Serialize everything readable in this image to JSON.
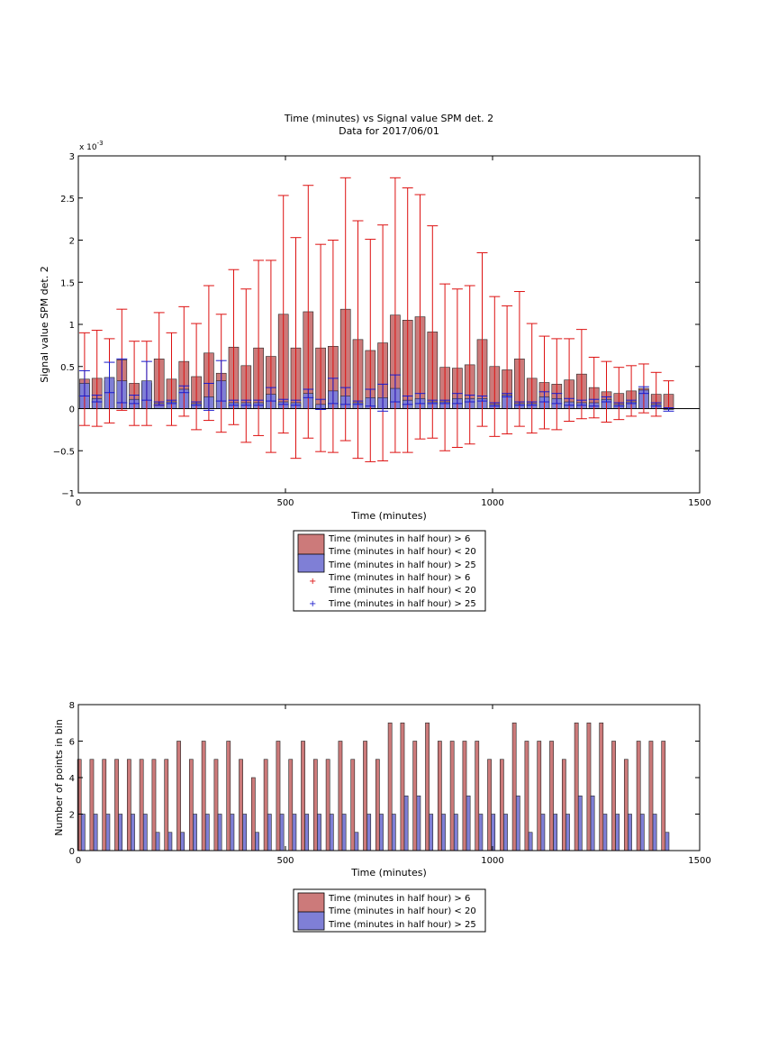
{
  "chart_data": [
    {
      "type": "bar",
      "title": "Time (minutes) vs Signal value SPM det. 2",
      "subtitle": "Data for 2017/06/01",
      "xlabel": "Time (minutes)",
      "ylabel": "Signal value SPM det. 2",
      "y_exponent_label": "x 10",
      "y_exponent_power": "-3",
      "xlim": [
        0,
        1500
      ],
      "ylim": [
        -1,
        3
      ],
      "x_ticks": [
        "0",
        "500",
        "1000",
        "1500"
      ],
      "y_ticks": [
        "−1",
        "−0.5",
        "0",
        "0.5",
        "1",
        "1.5",
        "2",
        "2.5",
        "3"
      ],
      "grid": false,
      "legend_position": "below",
      "legend": [
        "Time (minutes in half hour) > 6",
        "Time (minutes in half hour) < 20",
        "Time (minutes in half hour) > 25",
        "Time (minutes in half hour) > 6",
        "Time (minutes in half hour) < 20",
        "Time (minutes in half hour) > 25"
      ],
      "colors": {
        "series1_fill": "#cc7a7a",
        "series2_fill": "#7f7fd6",
        "series1_error": "#dd1111",
        "series2_error": "#1a1acc"
      },
      "x": [
        15,
        45,
        75,
        105,
        135,
        165,
        195,
        225,
        255,
        285,
        315,
        345,
        375,
        405,
        435,
        465,
        495,
        525,
        555,
        585,
        615,
        645,
        675,
        705,
        735,
        765,
        795,
        825,
        855,
        885,
        915,
        945,
        975,
        1005,
        1035,
        1065,
        1095,
        1125,
        1155,
        1185,
        1215,
        1245,
        1275,
        1305,
        1335,
        1365,
        1395,
        1425
      ],
      "series": [
        {
          "name": "Time (minutes in half hour) > 6 Time (minutes in half hour) < 20",
          "values": [
            0.35,
            0.36,
            0.33,
            0.58,
            0.3,
            0.3,
            0.59,
            0.35,
            0.56,
            0.38,
            0.66,
            0.42,
            0.73,
            0.51,
            0.72,
            0.62,
            1.12,
            0.72,
            1.15,
            0.72,
            0.74,
            1.18,
            0.82,
            0.69,
            0.78,
            1.11,
            1.05,
            1.09,
            0.91,
            0.49,
            0.48,
            0.52,
            0.82,
            0.5,
            0.46,
            0.59,
            0.36,
            0.31,
            0.29,
            0.34,
            0.41,
            0.25,
            0.2,
            0.18,
            0.21,
            0.24,
            0.17,
            0.17
          ],
          "error": [
            0.55,
            0.57,
            0.5,
            0.6,
            0.5,
            0.5,
            0.55,
            0.55,
            0.65,
            0.63,
            0.8,
            0.7,
            0.92,
            0.91,
            1.04,
            1.14,
            1.41,
            1.31,
            1.5,
            1.23,
            1.26,
            1.56,
            1.41,
            1.32,
            1.4,
            1.63,
            1.57,
            1.45,
            1.26,
            0.99,
            0.94,
            0.94,
            1.03,
            0.83,
            0.76,
            0.8,
            0.65,
            0.55,
            0.54,
            0.49,
            0.53,
            0.36,
            0.36,
            0.31,
            0.3,
            0.29,
            0.26,
            0.16
          ]
        },
        {
          "name": "Time (minutes in half hour) > 25",
          "values": [
            0.3,
            0.12,
            0.37,
            0.33,
            0.11,
            0.33,
            0.06,
            0.08,
            0.23,
            0.06,
            0.14,
            0.33,
            0.07,
            0.07,
            0.07,
            0.17,
            0.08,
            0.07,
            0.18,
            0.05,
            0.21,
            0.15,
            0.07,
            0.13,
            0.13,
            0.24,
            0.1,
            0.12,
            0.08,
            0.08,
            0.12,
            0.12,
            0.12,
            0.05,
            0.16,
            0.06,
            0.06,
            0.14,
            0.12,
            0.08,
            0.07,
            0.07,
            0.11,
            0.05,
            0.08,
            0.22,
            0.05,
            -0.01
          ],
          "error": [
            0.15,
            0.04,
            0.18,
            0.26,
            0.05,
            0.23,
            0.02,
            0.02,
            0.04,
            0.02,
            0.16,
            0.24,
            0.03,
            0.03,
            0.03,
            0.08,
            0.03,
            0.03,
            0.05,
            0.06,
            0.15,
            0.1,
            0.02,
            0.1,
            0.16,
            0.16,
            0.05,
            0.06,
            0.02,
            0.02,
            0.06,
            0.04,
            0.03,
            0.02,
            0.02,
            0.02,
            0.02,
            0.06,
            0.06,
            0.04,
            0.03,
            0.04,
            0.03,
            0.02,
            0.02,
            0.04,
            0.02,
            0.02
          ]
        }
      ]
    },
    {
      "type": "bar",
      "xlabel": "Time (minutes)",
      "ylabel": "Number of points in bin",
      "xlim": [
        0,
        1500
      ],
      "ylim": [
        0,
        8
      ],
      "x_ticks": [
        "0",
        "500",
        "1000",
        "1500"
      ],
      "y_ticks": [
        "0",
        "2",
        "4",
        "6",
        "8"
      ],
      "grid": false,
      "legend_position": "below",
      "legend": [
        "Time (minutes in half hour) > 6",
        "Time (minutes in half hour) < 20",
        "Time (minutes in half hour) > 25"
      ],
      "colors": {
        "series1_fill": "#cc7a7a",
        "series2_fill": "#7f7fd6"
      },
      "x": [
        7,
        37,
        67,
        97,
        127,
        157,
        187,
        217,
        247,
        277,
        307,
        337,
        367,
        397,
        427,
        457,
        487,
        517,
        547,
        577,
        607,
        637,
        667,
        697,
        727,
        757,
        787,
        817,
        847,
        877,
        907,
        937,
        967,
        997,
        1027,
        1057,
        1087,
        1117,
        1147,
        1177,
        1207,
        1237,
        1267,
        1297,
        1327,
        1357,
        1387,
        1417
      ],
      "series": [
        {
          "name": "Time (minutes in half hour) > 6 Time (minutes in half hour) < 20",
          "values": [
            5,
            5,
            5,
            5,
            5,
            5,
            5,
            5,
            6,
            5,
            6,
            5,
            6,
            5,
            4,
            5,
            6,
            5,
            6,
            5,
            5,
            6,
            5,
            6,
            5,
            7,
            7,
            6,
            7,
            6,
            6,
            6,
            6,
            5,
            5,
            7,
            6,
            6,
            6,
            5,
            7,
            7,
            7,
            6,
            5,
            6,
            6,
            6
          ]
        },
        {
          "name": "Time (minutes in half hour) > 25",
          "values": [
            2,
            2,
            2,
            2,
            2,
            2,
            1,
            1,
            1,
            2,
            2,
            2,
            2,
            2,
            1,
            2,
            2,
            2,
            2,
            2,
            2,
            2,
            1,
            2,
            2,
            2,
            3,
            3,
            2,
            2,
            2,
            3,
            2,
            2,
            2,
            3,
            1,
            2,
            2,
            2,
            3,
            3,
            2,
            2,
            2,
            2,
            2,
            1
          ]
        }
      ]
    }
  ]
}
